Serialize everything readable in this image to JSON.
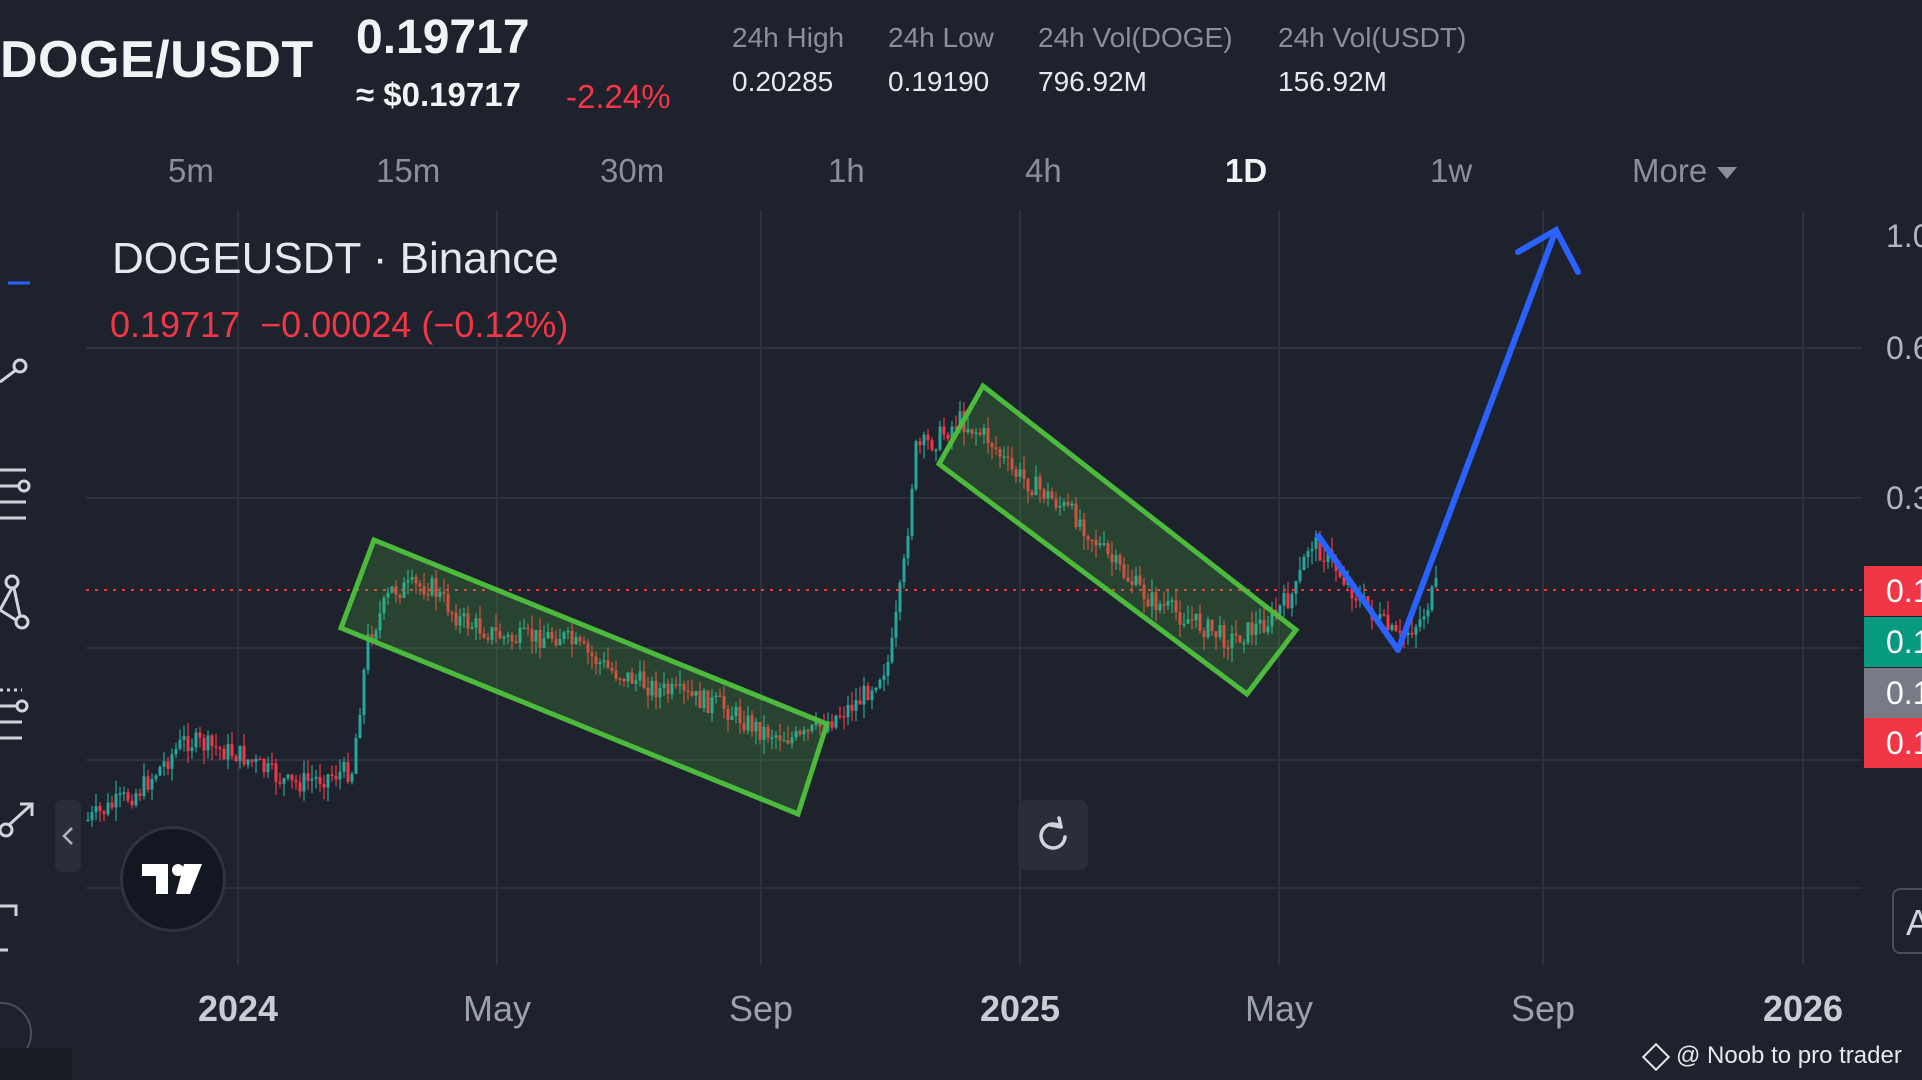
{
  "header": {
    "pair": "DOGE/USDT",
    "last_price": "0.19717",
    "approx_usd": "≈ $0.19717",
    "change_pct": "-2.24%",
    "stats": [
      {
        "label": "24h High",
        "value": "0.20285"
      },
      {
        "label": "24h Low",
        "value": "0.19190"
      },
      {
        "label": "24h Vol(DOGE)",
        "value": "796.92M"
      },
      {
        "label": "24h Vol(USDT)",
        "value": "156.92M"
      }
    ]
  },
  "timeframes": {
    "items": [
      "5m",
      "15m",
      "30m",
      "1h",
      "4h",
      "1D",
      "1w",
      "More"
    ],
    "active": "1D"
  },
  "chart": {
    "symbol": "DOGEUSDT · Binance",
    "legend_price": "0.19717",
    "legend_change": "−0.00024 (−0.12%)",
    "x_ticks": [
      "2024",
      "May",
      "Sep",
      "2025",
      "May",
      "Sep",
      "2026"
    ],
    "y_ticks": [
      "1.0",
      "0.6",
      "0.3"
    ],
    "price_badges": [
      "0.1",
      "0.1",
      "0.1",
      "0.1"
    ],
    "auto_button": "A",
    "watermark": "@ Noob to pro trader"
  },
  "colors": {
    "background": "#1e222d",
    "up": "#26a69a",
    "down": "#f23645",
    "channel": "#4cba3c",
    "projection_arrow": "#2962ff",
    "last_price_line": "#f23645"
  },
  "icons": [
    "trend-line-icon",
    "horizontal-lines-icon",
    "pattern-icon",
    "fib-icon",
    "arrow-tool-icon",
    "bracket-icon",
    "reset-icon",
    "collapse-chevron-icon",
    "tradingview-logo-icon"
  ]
}
